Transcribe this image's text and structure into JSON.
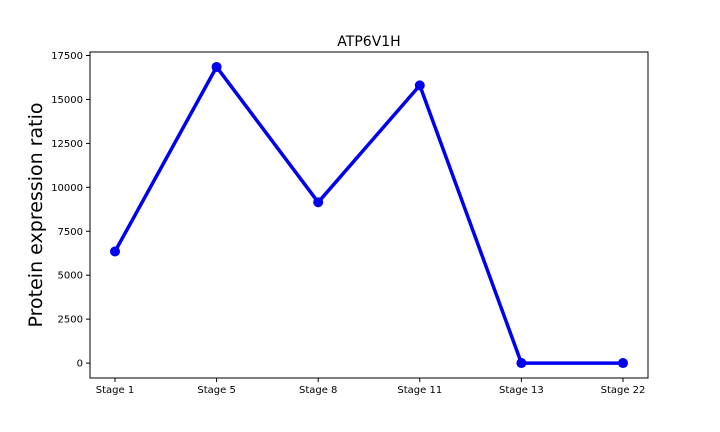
{
  "chart_data": {
    "type": "line",
    "title": "ATP6V1H",
    "xlabel": "",
    "ylabel": "Protein expression ratio",
    "categories": [
      "Stage 1",
      "Stage 5",
      "Stage 8",
      "Stage 11",
      "Stage 13",
      "Stage 22"
    ],
    "series": [
      {
        "values": [
          6350,
          16850,
          9150,
          15800,
          0,
          0
        ],
        "color": "#0000ee"
      }
    ],
    "ylim": [
      -850,
      17700
    ],
    "yticks": [
      0,
      2500,
      5000,
      7500,
      10000,
      12500,
      15000,
      17500
    ],
    "ytick_labels": [
      "0",
      "2500",
      "5000",
      "7500",
      "10000",
      "12500",
      "15000",
      "17500"
    ],
    "grid": false,
    "legend": "none"
  }
}
